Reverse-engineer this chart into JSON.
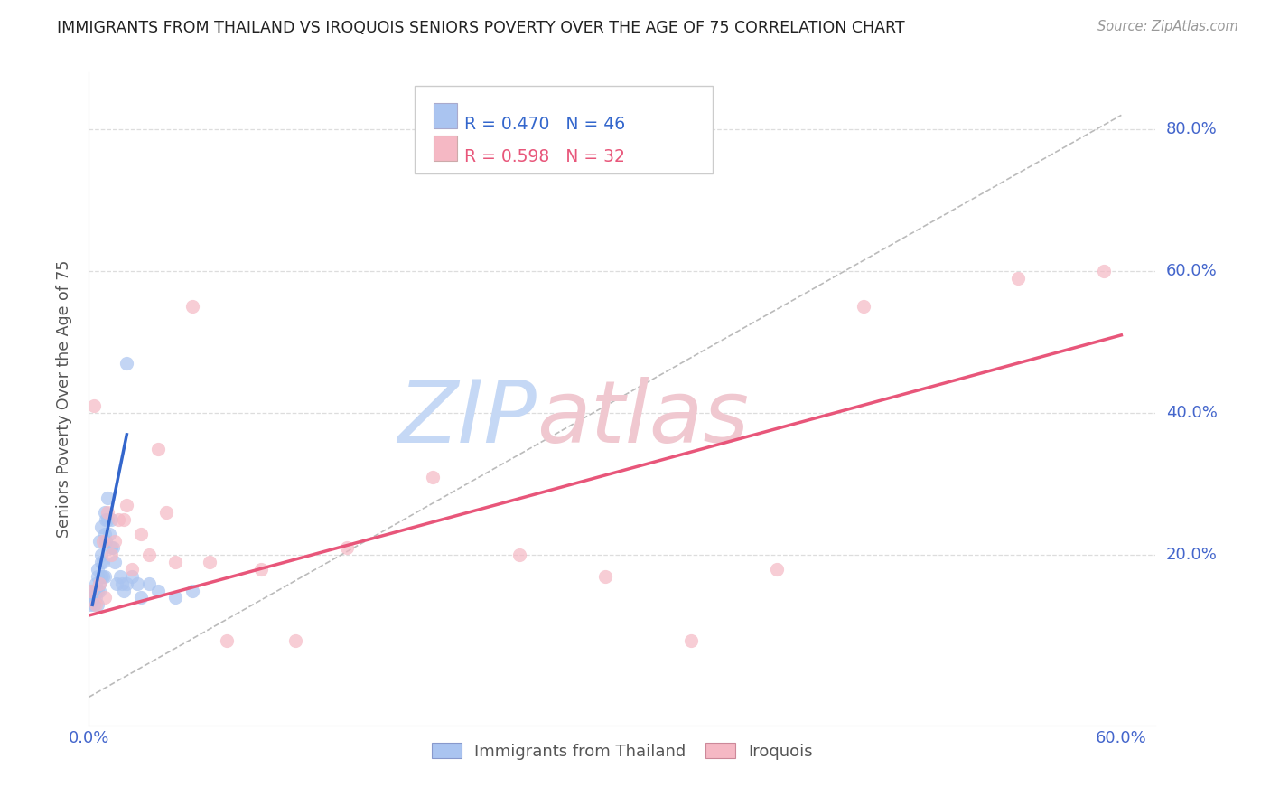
{
  "title": "IMMIGRANTS FROM THAILAND VS IROQUOIS SENIORS POVERTY OVER THE AGE OF 75 CORRELATION CHART",
  "source": "Source: ZipAtlas.com",
  "ylabel": "Seniors Poverty Over the Age of 75",
  "r_thailand": 0.47,
  "n_thailand": 46,
  "r_iroquois": 0.598,
  "n_iroquois": 32,
  "xlim": [
    0.0,
    0.62
  ],
  "ylim": [
    -0.04,
    0.88
  ],
  "blue_color": "#aac4f0",
  "pink_color": "#f5b8c4",
  "blue_line_color": "#3366cc",
  "pink_line_color": "#e8567a",
  "diag_color": "#bbbbbb",
  "grid_color": "#dddddd",
  "tick_color": "#4466cc",
  "title_color": "#222222",
  "source_color": "#999999",
  "ylabel_color": "#555555",
  "thailand_scatter_x": [
    0.001,
    0.002,
    0.002,
    0.003,
    0.003,
    0.004,
    0.004,
    0.004,
    0.005,
    0.005,
    0.005,
    0.005,
    0.006,
    0.006,
    0.006,
    0.007,
    0.007,
    0.007,
    0.007,
    0.008,
    0.008,
    0.009,
    0.009,
    0.009,
    0.01,
    0.01,
    0.011,
    0.011,
    0.012,
    0.013,
    0.013,
    0.014,
    0.015,
    0.016,
    0.018,
    0.019,
    0.02,
    0.022,
    0.025,
    0.028,
    0.03,
    0.035,
    0.04,
    0.05,
    0.06,
    0.022
  ],
  "thailand_scatter_y": [
    0.13,
    0.14,
    0.15,
    0.13,
    0.14,
    0.15,
    0.16,
    0.14,
    0.15,
    0.18,
    0.13,
    0.17,
    0.16,
    0.15,
    0.22,
    0.19,
    0.17,
    0.24,
    0.2,
    0.17,
    0.19,
    0.23,
    0.17,
    0.26,
    0.22,
    0.25,
    0.25,
    0.28,
    0.23,
    0.21,
    0.25,
    0.21,
    0.19,
    0.16,
    0.17,
    0.16,
    0.15,
    0.16,
    0.17,
    0.16,
    0.14,
    0.16,
    0.15,
    0.14,
    0.15,
    0.47
  ],
  "iroquois_scatter_x": [
    0.001,
    0.003,
    0.004,
    0.006,
    0.008,
    0.009,
    0.011,
    0.013,
    0.015,
    0.017,
    0.02,
    0.022,
    0.025,
    0.03,
    0.035,
    0.04,
    0.045,
    0.05,
    0.06,
    0.07,
    0.08,
    0.1,
    0.12,
    0.15,
    0.2,
    0.25,
    0.3,
    0.35,
    0.4,
    0.45,
    0.54,
    0.59
  ],
  "iroquois_scatter_y": [
    0.15,
    0.41,
    0.13,
    0.16,
    0.22,
    0.14,
    0.26,
    0.2,
    0.22,
    0.25,
    0.25,
    0.27,
    0.18,
    0.23,
    0.2,
    0.35,
    0.26,
    0.19,
    0.55,
    0.19,
    0.08,
    0.18,
    0.08,
    0.21,
    0.31,
    0.2,
    0.17,
    0.08,
    0.18,
    0.55,
    0.59,
    0.6
  ],
  "blue_line_x": [
    0.002,
    0.022
  ],
  "blue_line_y": [
    0.13,
    0.37
  ],
  "pink_line_x": [
    0.0,
    0.6
  ],
  "pink_line_y": [
    0.115,
    0.51
  ],
  "diag_line_x": [
    0.0,
    0.6
  ],
  "diag_line_y": [
    0.0,
    0.82
  ],
  "ytick_vals": [
    0.2,
    0.4,
    0.6,
    0.8
  ],
  "ytick_labels": [
    "20.0%",
    "40.0%",
    "60.0%",
    "80.0%"
  ],
  "xtick_vals": [
    0.0,
    0.1,
    0.2,
    0.3,
    0.4,
    0.5,
    0.6
  ],
  "xtick_labels": [
    "0.0%",
    "",
    "",
    "",
    "",
    "",
    "60.0%"
  ]
}
